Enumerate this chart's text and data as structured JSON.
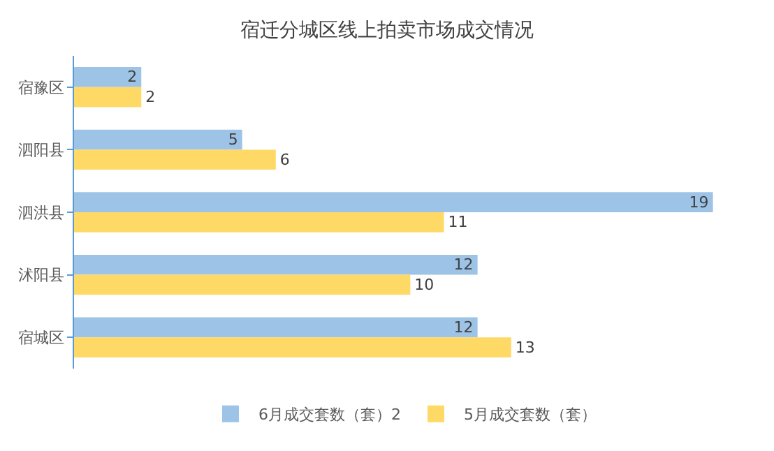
{
  "chart_data": {
    "type": "bar",
    "orientation": "horizontal",
    "title": "宿迁分城区线上拍卖市场成交情况",
    "categories": [
      "宿豫区",
      "泗阳县",
      "泗洪县",
      "沭阳县",
      "宿城区"
    ],
    "series": [
      {
        "name": "6月成交套数（套）2",
        "color": "#9dc3e6",
        "values": [
          2,
          5,
          19,
          12,
          12
        ]
      },
      {
        "name": "5月成交套数（套）",
        "color": "#ffd966",
        "values": [
          2,
          6,
          11,
          10,
          13
        ]
      }
    ],
    "data_labels": true,
    "legend": "bottom",
    "grid": false
  }
}
